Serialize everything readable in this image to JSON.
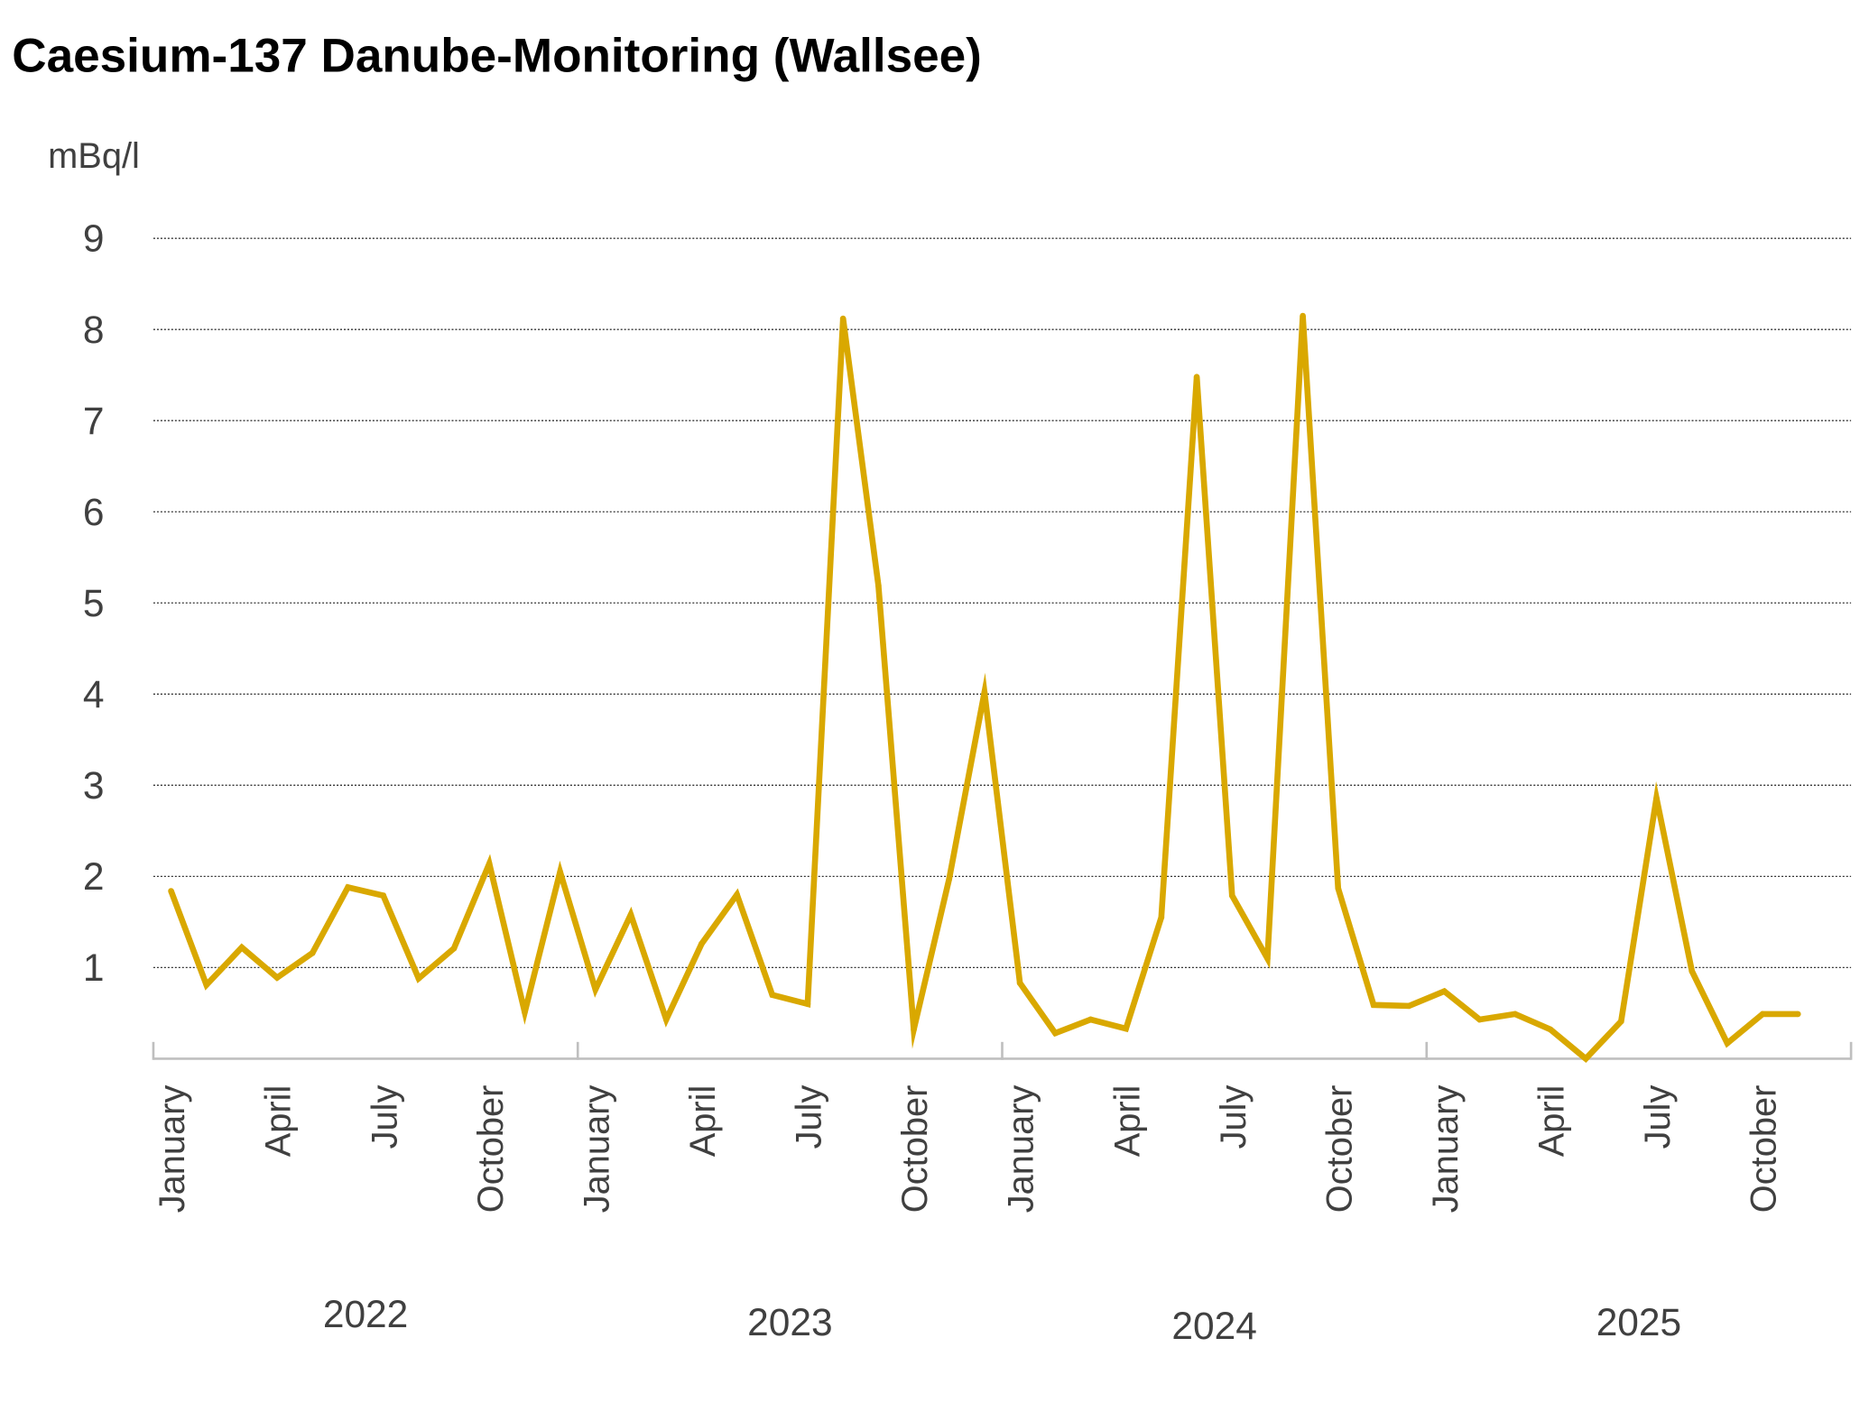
{
  "chart_data": {
    "type": "line",
    "title": "Caesium-137 Danube-Monitoring (Wallsee)",
    "ylabel": "mBq/l",
    "xlabel": "",
    "ylim": [
      0,
      9
    ],
    "yticks": [
      "1",
      "2",
      "3",
      "4",
      "5",
      "6",
      "7",
      "8",
      "9"
    ],
    "grid": true,
    "line_color": "#D9A800",
    "years": [
      "2022",
      "2023",
      "2024",
      "2025"
    ],
    "month_tick_labels": [
      "January",
      "April",
      "July",
      "October"
    ],
    "x": [
      "2022-01",
      "2022-02",
      "2022-03",
      "2022-04",
      "2022-05",
      "2022-06",
      "2022-07",
      "2022-08",
      "2022-09",
      "2022-10",
      "2022-11",
      "2022-12",
      "2023-01",
      "2023-02",
      "2023-03",
      "2023-04",
      "2023-05",
      "2023-06",
      "2023-07",
      "2023-08",
      "2023-09",
      "2023-10",
      "2023-11",
      "2023-12",
      "2024-01",
      "2024-02",
      "2024-03",
      "2024-04",
      "2024-05",
      "2024-06",
      "2024-07",
      "2024-08",
      "2024-09",
      "2024-10",
      "2024-11",
      "2024-12",
      "2025-01",
      "2025-02",
      "2025-03",
      "2025-04",
      "2025-05",
      "2025-06",
      "2025-07",
      "2025-08",
      "2025-09",
      "2025-10",
      "2025-11"
    ],
    "series": [
      {
        "values": [
          1.84,
          0.81,
          1.22,
          0.89,
          1.16,
          1.88,
          1.79,
          0.88,
          1.21,
          2.14,
          0.51,
          2.05,
          0.76,
          1.58,
          0.43,
          1.26,
          1.8,
          0.7,
          0.6,
          8.12,
          5.19,
          0.32,
          1.97,
          4.02,
          0.83,
          0.28,
          0.43,
          0.33,
          1.55,
          7.48,
          1.79,
          1.1,
          8.15,
          1.87,
          0.59,
          0.58,
          0.74,
          0.43,
          0.49,
          0.32,
          0.0,
          0.41,
          2.86,
          0.96,
          0.17,
          0.49,
          0.49
        ]
      }
    ]
  }
}
